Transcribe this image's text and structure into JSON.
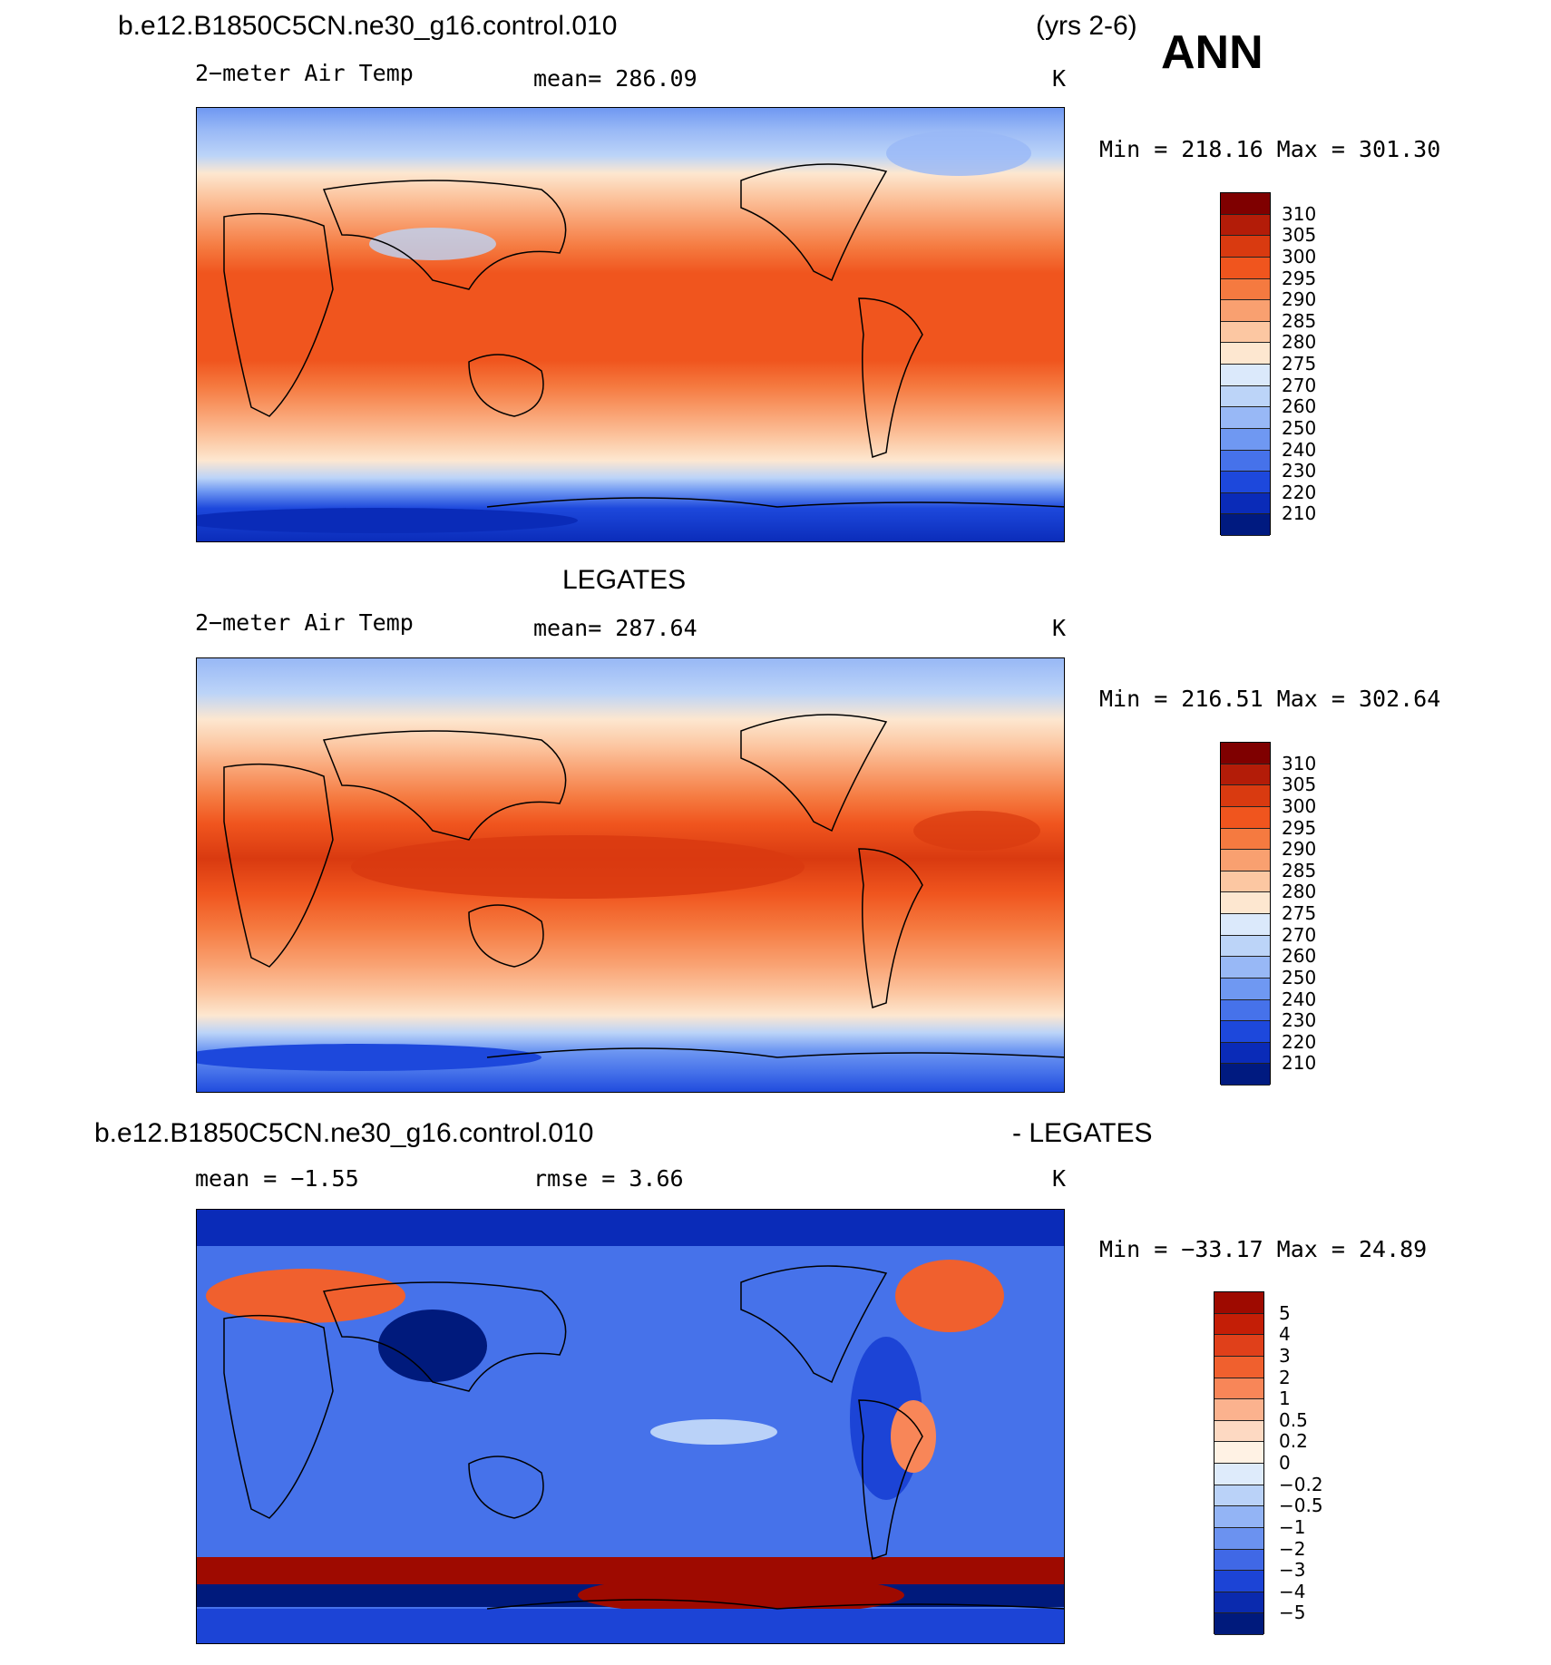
{
  "header": {
    "case_name": "b.e12.B1850C5CN.ne30_g16.control.010",
    "years": "(yrs 2-6)",
    "season": "ANN"
  },
  "panels": [
    {
      "title": "",
      "variable": "2−meter Air Temp",
      "stat_left": "",
      "stat_mid": "mean=  286.09",
      "units": "K",
      "minmax": "Min  =  218.16  Max  =  301.30"
    },
    {
      "title": "LEGATES",
      "variable": "2−meter Air Temp",
      "stat_left": "",
      "stat_mid": "mean=  287.64",
      "units": "K",
      "minmax": "Min  =  216.51  Max  =  302.64"
    },
    {
      "title_left": "b.e12.B1850C5CN.ne30_g16.control.010",
      "title_right": "- LEGATES",
      "stat_left": "mean  =    −1.55",
      "stat_mid": "rmse  =      3.66",
      "units": "K",
      "minmax": "Min  =  −33.17  Max  =     24.89"
    }
  ],
  "colorbars": {
    "temp": {
      "labels": [
        "310",
        "305",
        "300",
        "295",
        "290",
        "285",
        "280",
        "275",
        "270",
        "260",
        "250",
        "240",
        "230",
        "220",
        "210"
      ],
      "colors": [
        "#7f0000",
        "#b31c08",
        "#d93a10",
        "#f0551e",
        "#f57a40",
        "#f9a070",
        "#fcc7a2",
        "#fde7d0",
        "#dbe9fb",
        "#bcd4f8",
        "#98b8f6",
        "#6f98f2",
        "#4672ea",
        "#1d48dc",
        "#0a2bb8",
        "#001a80"
      ]
    },
    "diff": {
      "labels": [
        "5",
        "4",
        "3",
        "2",
        "1",
        "0.5",
        "0.2",
        "0",
        "−0.2",
        "−0.5",
        "−1",
        "−2",
        "−3",
        "−4",
        "−5"
      ],
      "colors": [
        "#9e0a00",
        "#c41e06",
        "#e0401a",
        "#f0602e",
        "#f88658",
        "#fbb28e",
        "#fdd9c2",
        "#fff2e4",
        "#deebfb",
        "#bad2f8",
        "#93b4f5",
        "#6b92f0",
        "#4068e6",
        "#1c44d6",
        "#0a2aae",
        "#001a7c"
      ]
    }
  }
}
